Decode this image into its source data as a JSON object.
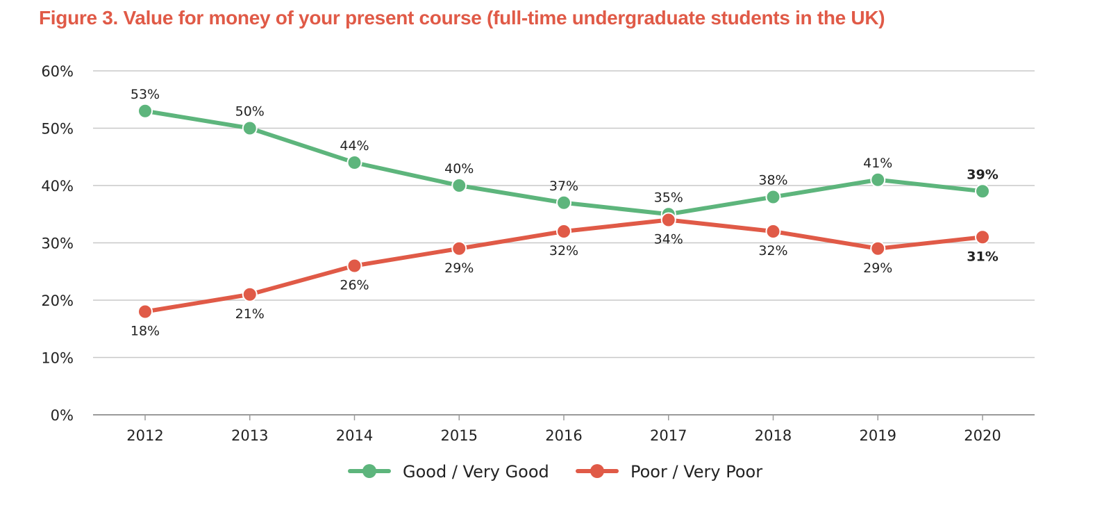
{
  "chart_data": {
    "type": "line",
    "title": "Figure 3. Value for money of your present course (full-time undergraduate students in the UK)",
    "categories": [
      "2012",
      "2013",
      "2014",
      "2015",
      "2016",
      "2017",
      "2018",
      "2019",
      "2020"
    ],
    "series": [
      {
        "name": "Good / Very Good",
        "color": "#5db57c",
        "values": [
          53,
          50,
          44,
          40,
          37,
          35,
          38,
          41,
          39
        ],
        "labels": [
          "53%",
          "50%",
          "44%",
          "40%",
          "37%",
          "35%",
          "38%",
          "41%",
          "39%"
        ],
        "label_position": "above"
      },
      {
        "name": "Poor / Very Poor",
        "color": "#e05a47",
        "values": [
          18,
          21,
          26,
          29,
          32,
          34,
          32,
          29,
          31
        ],
        "labels": [
          "18%",
          "21%",
          "26%",
          "29%",
          "32%",
          "34%",
          "32%",
          "29%",
          "31%"
        ],
        "label_position": "below"
      }
    ],
    "ylim": [
      0,
      60
    ],
    "yticks": [
      0,
      10,
      20,
      30,
      40,
      50,
      60
    ],
    "ytick_labels": [
      "0%",
      "10%",
      "20%",
      "30%",
      "40%",
      "50%",
      "60%"
    ],
    "xlabel": "",
    "ylabel": "",
    "grid": true,
    "legend_position": "bottom-center",
    "bold_last_label": true,
    "title_color": "#e05a47",
    "grid_color": "#c8c8c8"
  }
}
